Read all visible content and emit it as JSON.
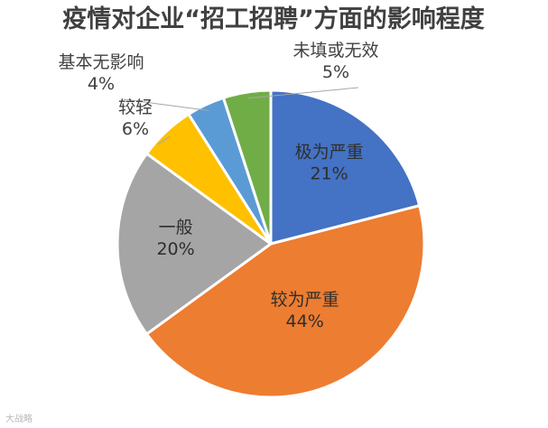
{
  "chart_data": {
    "type": "pie",
    "title": "疫情对企业“招工招聘”方面的影响程度",
    "slices": [
      {
        "label": "极为严重",
        "value": 21,
        "value_label": "21%",
        "color": "#4472C4"
      },
      {
        "label": "较为严重",
        "value": 44,
        "value_label": "44%",
        "color": "#ED7D31"
      },
      {
        "label": "一般",
        "value": 20,
        "value_label": "20%",
        "color": "#A5A5A5"
      },
      {
        "label": "较轻",
        "value": 6,
        "value_label": "6%",
        "color": "#FFC000"
      },
      {
        "label": "基本无影响",
        "value": 4,
        "value_label": "4%",
        "color": "#5B9BD5"
      },
      {
        "label": "未填或无效",
        "value": 5,
        "value_label": "5%",
        "color": "#70AD47"
      }
    ],
    "slice_border_color": "#ffffff",
    "start": "12 o'clock",
    "direction": "clockwise",
    "legend": "none",
    "data_labels": "category name and percentage"
  },
  "watermark": "大战略"
}
